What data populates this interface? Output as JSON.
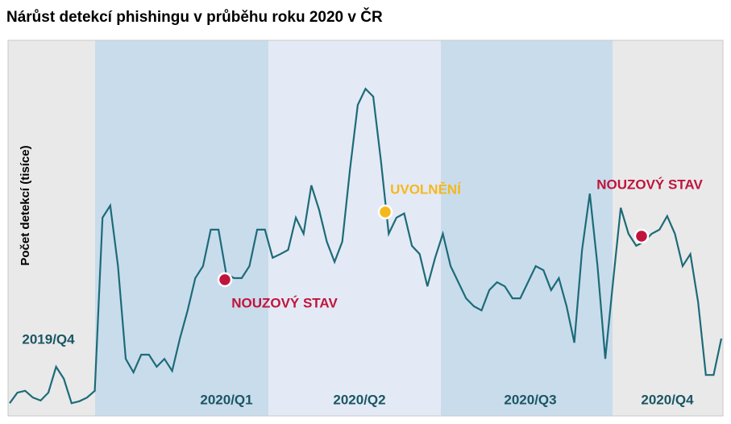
{
  "chart_data": {
    "type": "line",
    "title": "Nárůst detekcí phishingu v průběhu roku 2020 v ČR",
    "y_label": "Počet detekcí (tisíce)",
    "color": "#1d6b78",
    "ylim": [
      0,
      100
    ],
    "quarters": [
      {
        "label": "2019/Q4",
        "color": "#e9e9e9"
      },
      {
        "label": "2020/Q1",
        "color": "#c9dcec"
      },
      {
        "label": "2020/Q2",
        "color": "#e3eaf5"
      },
      {
        "label": "2020/Q3",
        "color": "#c9dcec"
      },
      {
        "label": "2020/Q4",
        "color": "#e9e9e9"
      }
    ],
    "annotations": [
      {
        "text": "NOUZOVÝ STAV",
        "color": "#c0143c"
      },
      {
        "text": "UVOLNĚNÍ",
        "color": "#f5b81c"
      },
      {
        "text": "NOUZOVÝ STAV",
        "color": "#c0143c"
      }
    ],
    "values": [
      3.4,
      6.2,
      6.7,
      4.9,
      4.1,
      6.2,
      13.1,
      9.9,
      3.4,
      3.9,
      4.9,
      6.7,
      52.8,
      56.0,
      39.9,
      15.2,
      11.6,
      16.3,
      16.3,
      13.1,
      15.2,
      12.0,
      20.6,
      28.1,
      36.7,
      39.9,
      49.6,
      49.6,
      37.8,
      36.7,
      36.7,
      39.9,
      49.6,
      49.6,
      42.1,
      43.1,
      44.2,
      52.8,
      48.5,
      61.4,
      54.9,
      46.4,
      41.0,
      46.4,
      65.7,
      82.8,
      87.1,
      85.0,
      67.8,
      48.5,
      52.8,
      53.9,
      45.3,
      43.1,
      34.5,
      42.1,
      48.5,
      39.9,
      35.6,
      31.3,
      29.2,
      28.1,
      33.5,
      35.6,
      34.5,
      31.3,
      31.3,
      35.6,
      39.9,
      38.8,
      33.5,
      36.7,
      29.2,
      19.5,
      44.2,
      59.2,
      39.9,
      15.2,
      35.6,
      55.4,
      48.5,
      45.3,
      46.4,
      48.5,
      49.6,
      53.2,
      48.5,
      39.9,
      43.1,
      30.3,
      10.9,
      10.9,
      20.6
    ]
  }
}
